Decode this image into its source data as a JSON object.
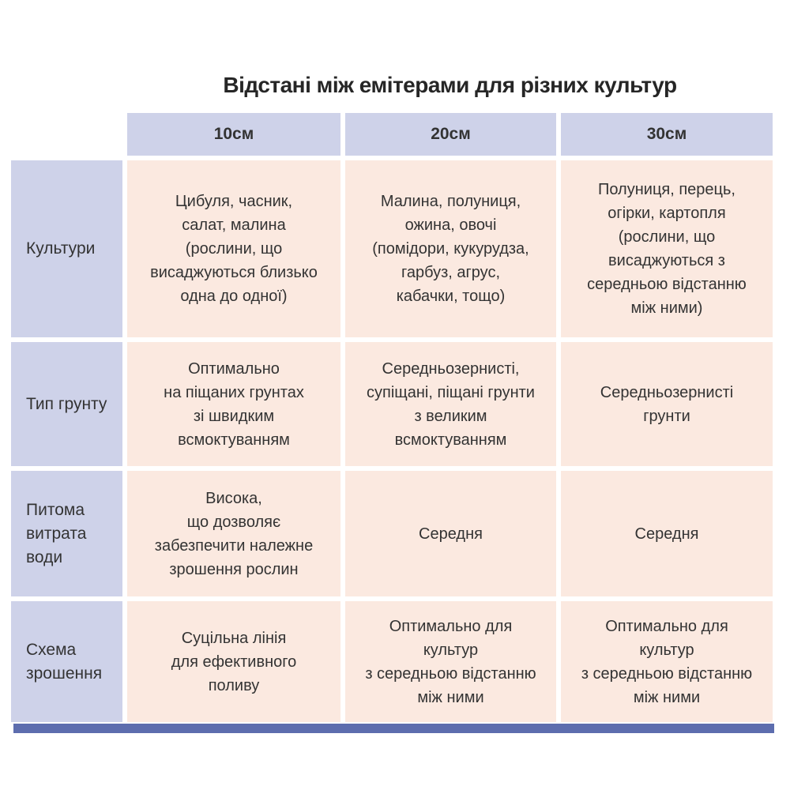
{
  "chart_data": {
    "type": "table",
    "title": "Відстані між емітерами для різних культур",
    "columns": [
      "10см",
      "20см",
      "30см"
    ],
    "rows": [
      {
        "label": "Культури",
        "cells": [
          "Цибуля, часник,\nсалат, малина\n(рослини, що\nвисаджуються близько\nодна до одної)",
          "Малина, полуниця,\nожина, овочі\n(помідори, кукурудза,\nгарбуз, агрус,\nкабачки, тощо)",
          "Полуниця, перець,\nогірки, картопля\n(рослини, що\nвисаджуються з\nсередньою відстанню\nміж ними)"
        ]
      },
      {
        "label": "Тип грунту",
        "cells": [
          "Оптимально\nна піщаних грунтах\nзі швидким\nвсмоктуванням",
          "Середньозернисті,\nсупіщані, піщані грунти\nз великим\nвсмоктуванням",
          "Середньозернисті\nгрунти"
        ]
      },
      {
        "label": "Питома\nвитрата\nводи",
        "cells": [
          "Висока,\nщо дозволяє\nзабезпечити належне\nзрошення рослин",
          "Середня",
          "Середня"
        ]
      },
      {
        "label": "Схема\nзрошення",
        "cells": [
          "Суцільна лінія\nдля ефективного\nполиву",
          "Оптимально для\nкультур\nз середньою відстанню\nміж ними",
          "Оптимально для\nкультур\nз середньою відстанню\nміж ними"
        ]
      }
    ],
    "layout": {
      "header_position": "top",
      "row_labels_position": "left"
    }
  },
  "colors": {
    "header_bg": "#ced2e9",
    "row_label_bg": "#ced2e9",
    "cell_bg": "#fbe9e0",
    "bottom_bar": "#5d6dae",
    "text": "#333333",
    "title_text": "#262626"
  }
}
